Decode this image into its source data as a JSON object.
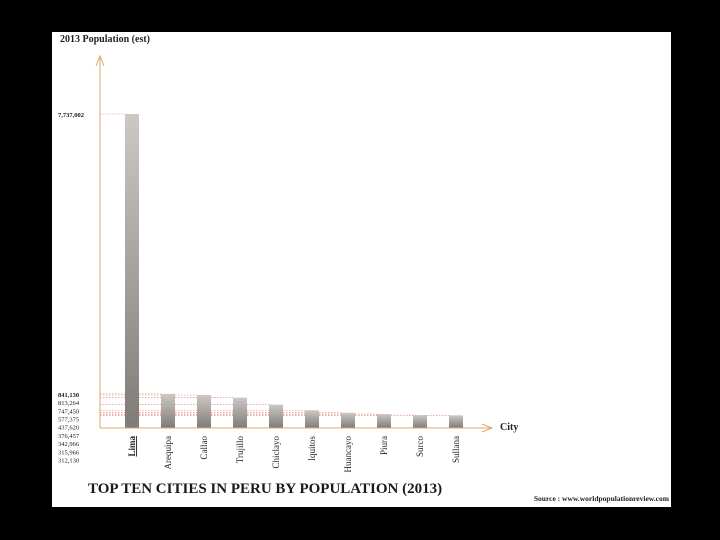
{
  "chart_data": {
    "type": "bar",
    "title": "TOP TEN CITIES IN PERU BY POPULATION (2013)",
    "ylabel": "2013 Population (est)",
    "xlabel": "City",
    "source": "Source : www.worldpopulationreview.com",
    "categories": [
      "Lima",
      "Arequipa",
      "Callao",
      "Trujillo",
      "Chiclayo",
      "Iquitos",
      "Huancayo",
      "Piura",
      "Surco",
      "Sullana"
    ],
    "values": [
      7737002,
      841130,
      813264,
      747450,
      577375,
      437620,
      376457,
      342966,
      315966,
      312130
    ],
    "value_labels": [
      "7,737,002",
      "841,130",
      "813,264",
      "747,450",
      "577,375",
      "437,620",
      "376,457",
      "342,966",
      "315,966",
      "312,130"
    ],
    "highlight_category": "Lima",
    "ylim": [
      0,
      8000000
    ],
    "grid": false,
    "legend": "none",
    "colors": {
      "bar_light": "#ccc9c4",
      "bar_dark": "#7f7b76",
      "axis": "#e3a56b",
      "guide": "#e07a6e",
      "text": "#222222"
    }
  }
}
